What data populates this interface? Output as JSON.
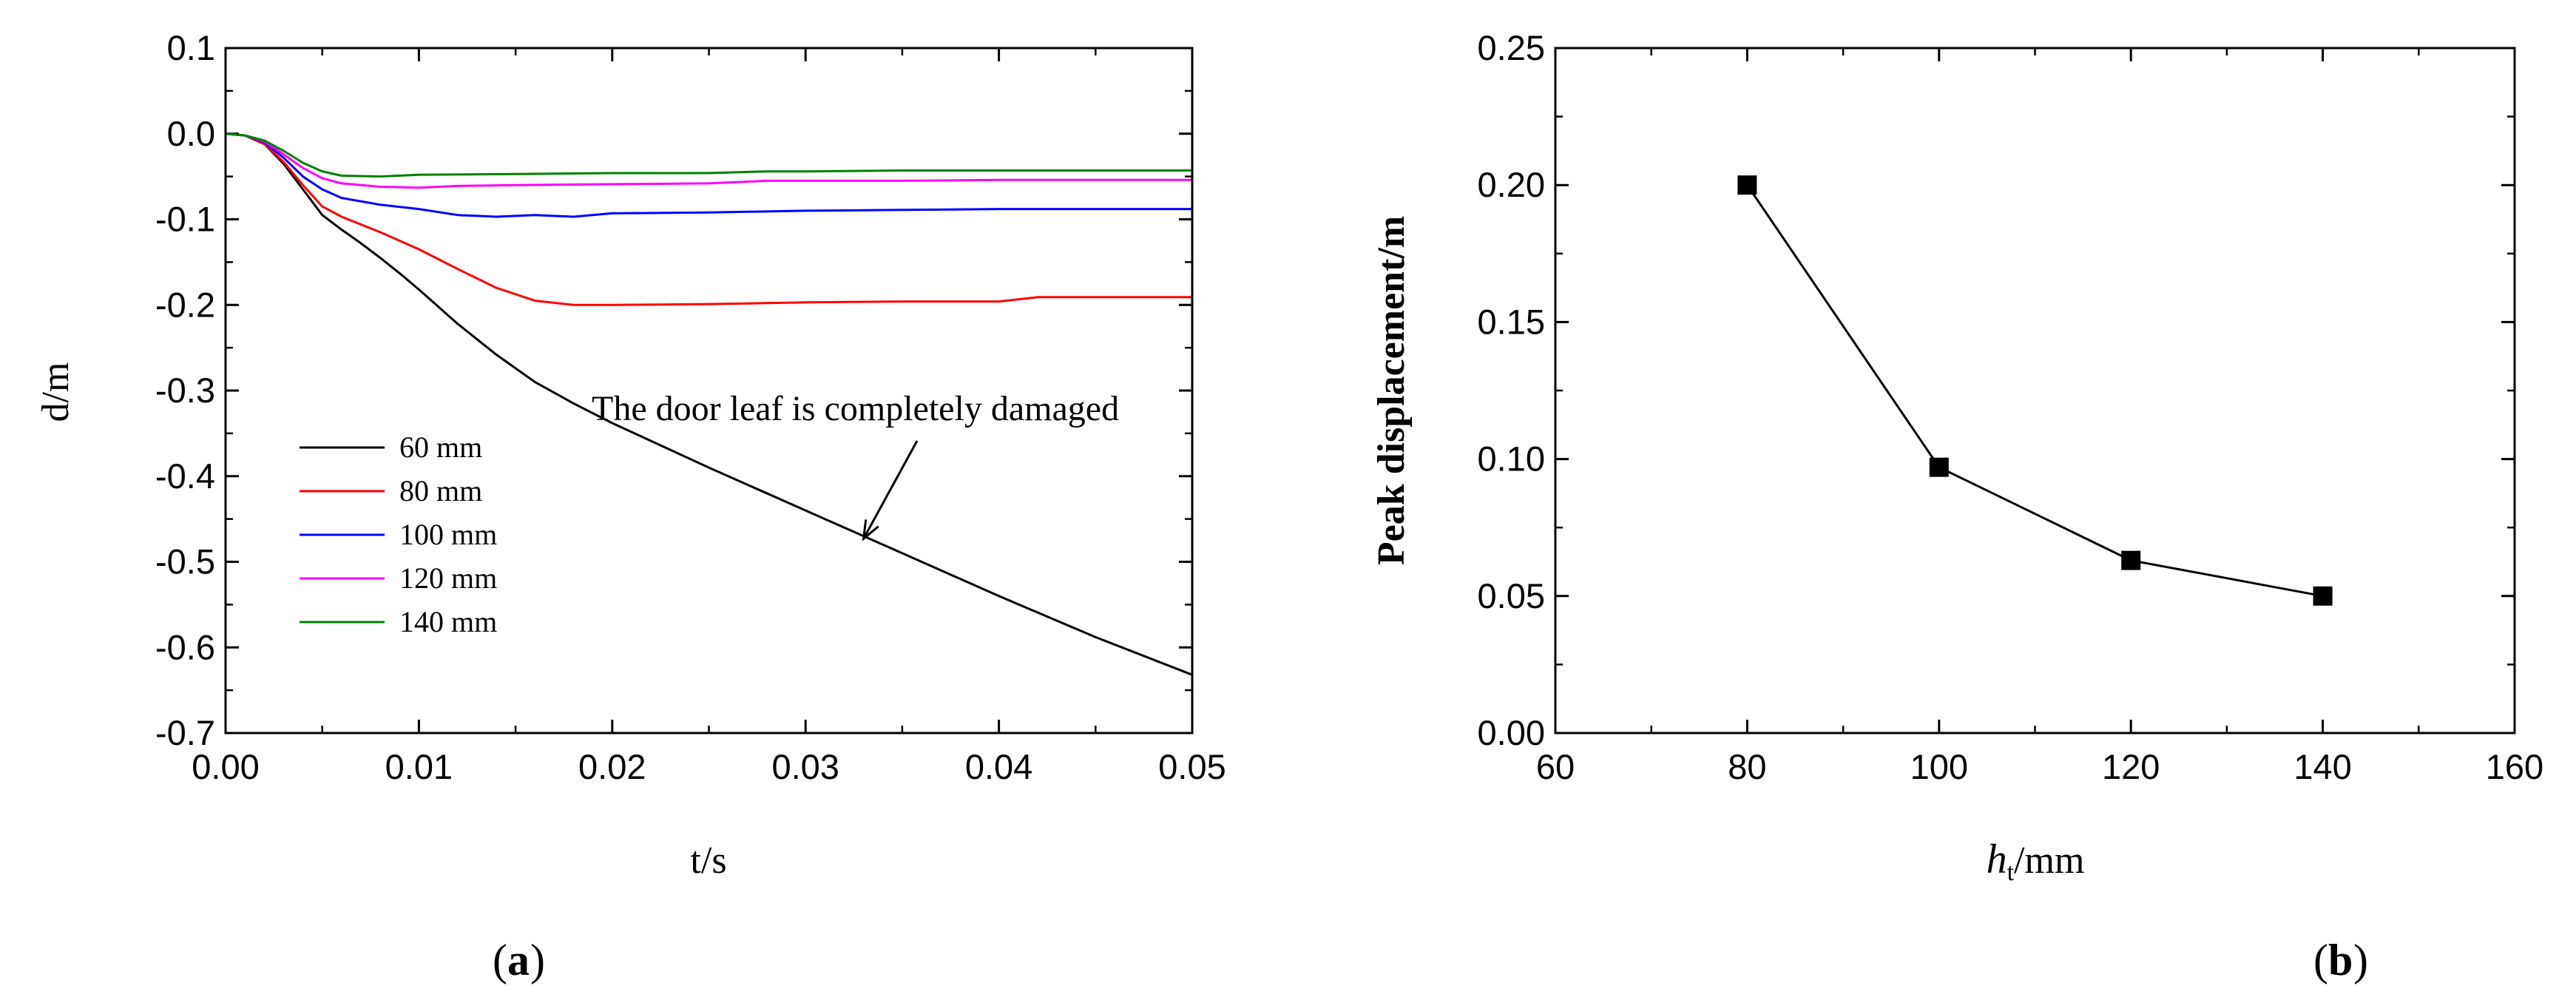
{
  "chart_data": [
    {
      "type": "line",
      "panel_label": "a",
      "xlabel": "t/s",
      "ylabel": "d/m",
      "xlim": [
        0,
        0.05
      ],
      "ylim": [
        -0.7,
        0.1
      ],
      "xticks": [
        "0.00",
        "0.01",
        "0.02",
        "0.03",
        "0.04",
        "0.05"
      ],
      "yticks": [
        "0.1",
        "0.0",
        "-0.1",
        "-0.2",
        "-0.3",
        "-0.4",
        "-0.5",
        "-0.6",
        "-0.7"
      ],
      "legend_position": "lower-left",
      "series": [
        {
          "name": "60 mm",
          "color": "#000000",
          "x": [
            0,
            0.001,
            0.002,
            0.003,
            0.004,
            0.005,
            0.006,
            0.007,
            0.008,
            0.009,
            0.01,
            0.012,
            0.014,
            0.016,
            0.018,
            0.02,
            0.025,
            0.03,
            0.035,
            0.04,
            0.045,
            0.05
          ],
          "y": [
            0,
            -0.002,
            -0.012,
            -0.035,
            -0.065,
            -0.095,
            -0.112,
            -0.128,
            -0.145,
            -0.163,
            -0.182,
            -0.222,
            -0.258,
            -0.29,
            -0.315,
            -0.338,
            -0.39,
            -0.44,
            -0.49,
            -0.54,
            -0.588,
            -0.632
          ]
        },
        {
          "name": "80 mm",
          "color": "#ff0000",
          "x": [
            0,
            0.001,
            0.002,
            0.003,
            0.004,
            0.005,
            0.006,
            0.008,
            0.01,
            0.012,
            0.014,
            0.016,
            0.018,
            0.02,
            0.025,
            0.03,
            0.035,
            0.04,
            0.042,
            0.045,
            0.05
          ],
          "y": [
            0,
            -0.002,
            -0.012,
            -0.033,
            -0.06,
            -0.085,
            -0.097,
            -0.115,
            -0.135,
            -0.158,
            -0.18,
            -0.195,
            -0.2,
            -0.2,
            -0.199,
            -0.197,
            -0.196,
            -0.196,
            -0.191,
            -0.191,
            -0.191
          ]
        },
        {
          "name": "100 mm",
          "color": "#0000ff",
          "x": [
            0,
            0.001,
            0.002,
            0.003,
            0.004,
            0.005,
            0.006,
            0.008,
            0.01,
            0.012,
            0.014,
            0.016,
            0.018,
            0.02,
            0.025,
            0.03,
            0.035,
            0.04,
            0.045,
            0.05
          ],
          "y": [
            0,
            -0.002,
            -0.01,
            -0.028,
            -0.05,
            -0.065,
            -0.075,
            -0.083,
            -0.088,
            -0.095,
            -0.097,
            -0.095,
            -0.097,
            -0.093,
            -0.092,
            -0.09,
            -0.089,
            -0.088,
            -0.088,
            -0.088
          ]
        },
        {
          "name": "120 mm",
          "color": "#ff00ff",
          "x": [
            0,
            0.001,
            0.002,
            0.003,
            0.004,
            0.005,
            0.006,
            0.008,
            0.01,
            0.012,
            0.015,
            0.02,
            0.025,
            0.028,
            0.03,
            0.035,
            0.04,
            0.045,
            0.05
          ],
          "y": [
            0,
            -0.002,
            -0.009,
            -0.024,
            -0.04,
            -0.052,
            -0.058,
            -0.062,
            -0.063,
            -0.061,
            -0.06,
            -0.059,
            -0.058,
            -0.055,
            -0.055,
            -0.055,
            -0.054,
            -0.054,
            -0.054
          ]
        },
        {
          "name": "140 mm",
          "color": "#008000",
          "x": [
            0,
            0.001,
            0.002,
            0.003,
            0.004,
            0.005,
            0.006,
            0.008,
            0.01,
            0.015,
            0.02,
            0.025,
            0.028,
            0.03,
            0.035,
            0.04,
            0.045,
            0.05
          ],
          "y": [
            0,
            -0.002,
            -0.008,
            -0.02,
            -0.034,
            -0.044,
            -0.049,
            -0.05,
            -0.048,
            -0.047,
            -0.046,
            -0.046,
            -0.044,
            -0.044,
            -0.043,
            -0.043,
            -0.043,
            -0.043
          ]
        }
      ],
      "annotation": {
        "text": "The door leaf is completely damaged",
        "arrow_target": [
          0.033,
          -0.473
        ]
      }
    },
    {
      "type": "line",
      "panel_label": "b",
      "xlabel_parts": [
        "h",
        "t",
        "/mm"
      ],
      "ylabel": "Peak displacement/m",
      "xlim": [
        60,
        160
      ],
      "ylim": [
        0,
        0.25
      ],
      "xticks": [
        "60",
        "80",
        "100",
        "120",
        "140",
        "160"
      ],
      "yticks": [
        "0.25",
        "0.20",
        "0.15",
        "0.10",
        "0.05",
        "0.00"
      ],
      "series": [
        {
          "color": "#000000",
          "marker": "square",
          "x": [
            80,
            100,
            120,
            140
          ],
          "y": [
            0.2,
            0.097,
            0.063,
            0.05
          ]
        }
      ]
    }
  ]
}
